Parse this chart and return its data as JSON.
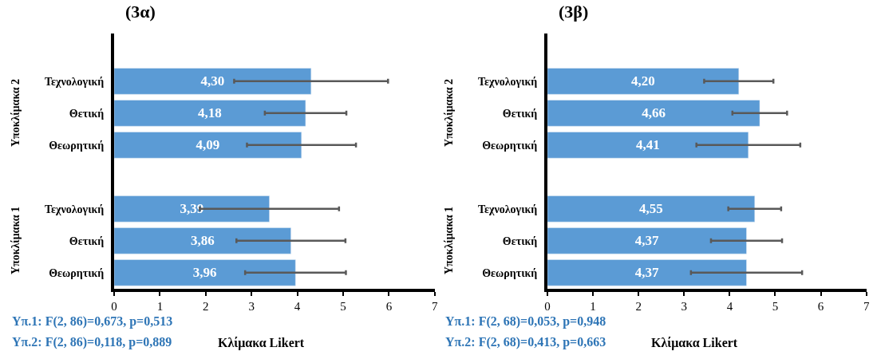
{
  "chart_data": [
    {
      "type": "bar",
      "orientation": "horizontal",
      "title": "(3α)",
      "xlabel": "Κλίμακα Likert",
      "categories": [
        null,
        "Τεχνολογική",
        "Θετική",
        "Θεωρητική",
        null,
        "Τεχνολογική",
        "Θετική",
        "Θεωρητική"
      ],
      "series": [
        {
          "color": "#5b9bd5",
          "values": [
            null,
            4.3,
            4.18,
            4.09,
            null,
            3.39,
            3.86,
            3.96
          ],
          "errors": [
            null,
            1.68,
            0.89,
            1.19,
            null,
            1.52,
            1.19,
            1.1
          ],
          "value_labels": [
            null,
            "4,30",
            "4,18",
            "4,09",
            null,
            "3,39",
            "3,86",
            "3,96"
          ]
        }
      ],
      "xlim": [
        0,
        7
      ],
      "xticks": [
        0,
        1,
        2,
        3,
        4,
        5,
        6,
        7
      ],
      "annotations": [
        "Υποκλίμακα 2",
        "Υποκλίμακα 1",
        "Υπ.1: F(2, 86)=0,673, p=0,513",
        "Υπ.2: F(2, 86)=0,118, p=0,889"
      ]
    },
    {
      "type": "bar",
      "orientation": "horizontal",
      "title": "(3β)",
      "xlabel": "Κλίμακα Likert",
      "categories": [
        null,
        "Τεχνολογική",
        "Θετική",
        "Θεωρητική",
        null,
        "Τεχνολογική",
        "Θετική",
        "Θεωρητική"
      ],
      "series": [
        {
          "color": "#5b9bd5",
          "values": [
            null,
            4.2,
            4.66,
            4.41,
            null,
            4.55,
            4.37,
            4.37
          ],
          "errors": [
            null,
            0.76,
            0.6,
            1.14,
            null,
            0.58,
            0.78,
            1.22
          ],
          "value_labels": [
            null,
            "4,20",
            "4,66",
            "4,41",
            null,
            "4,55",
            "4,37",
            "4,37"
          ]
        }
      ],
      "xlim": [
        0,
        7
      ],
      "xticks": [
        0,
        1,
        2,
        3,
        4,
        5,
        6,
        7
      ],
      "annotations": [
        "Υποκλίμακα 2",
        "Υποκλίμακα 1",
        "Υπ.1: F(2, 68)=0,053, p=0,948",
        "Υπ.2: F(2, 68)=0,413, p=0,663"
      ]
    }
  ]
}
